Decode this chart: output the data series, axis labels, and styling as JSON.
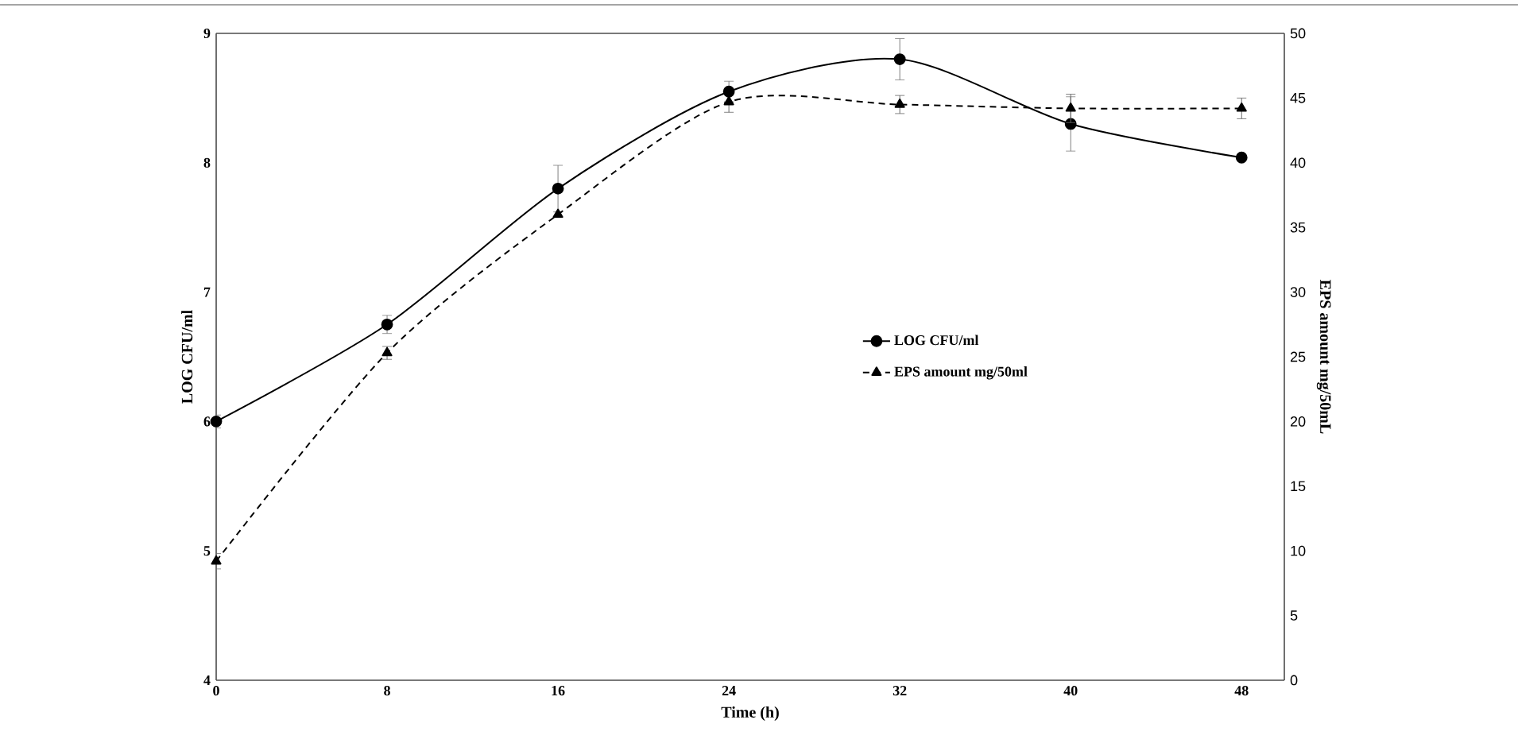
{
  "chart_data": {
    "type": "line",
    "xlabel": "Time (h)",
    "ylabel": "LOG CFU/ml",
    "y2label": "EPS amount mg/50mL",
    "x": [
      0,
      8,
      16,
      24,
      32,
      40,
      48
    ],
    "xlim": [
      0,
      50
    ],
    "xticks": [
      0,
      8,
      16,
      24,
      32,
      40,
      48
    ],
    "ylim": [
      4,
      9
    ],
    "yticks": [
      4,
      5,
      6,
      7,
      8,
      9
    ],
    "y2lim": [
      0,
      50
    ],
    "y2ticks": [
      0,
      5,
      10,
      15,
      20,
      25,
      30,
      35,
      40,
      45,
      50
    ],
    "legend": "right",
    "grid": false,
    "series": [
      {
        "name": "LOG CFU/ml",
        "color": "#000000",
        "marker": "circle",
        "line_style": "solid",
        "values": [
          6.0,
          6.75,
          7.8,
          8.55,
          8.8,
          8.3,
          8.04
        ],
        "errors": [
          0.05,
          0.07,
          0.18,
          0.08,
          0.16,
          0.21,
          null
        ]
      },
      {
        "name": "EPS amount mg/50ml",
        "color": "#000000",
        "marker": "triangle",
        "line_style": "dashed",
        "axis": "y2",
        "values": [
          9.2,
          25.3,
          36.0,
          44.7,
          44.5,
          44.2,
          44.2
        ],
        "errors": [
          0.6,
          0.5,
          null,
          [
            43.9,
            44.7
          ],
          0.7,
          1.1,
          0.8
        ]
      }
    ]
  }
}
